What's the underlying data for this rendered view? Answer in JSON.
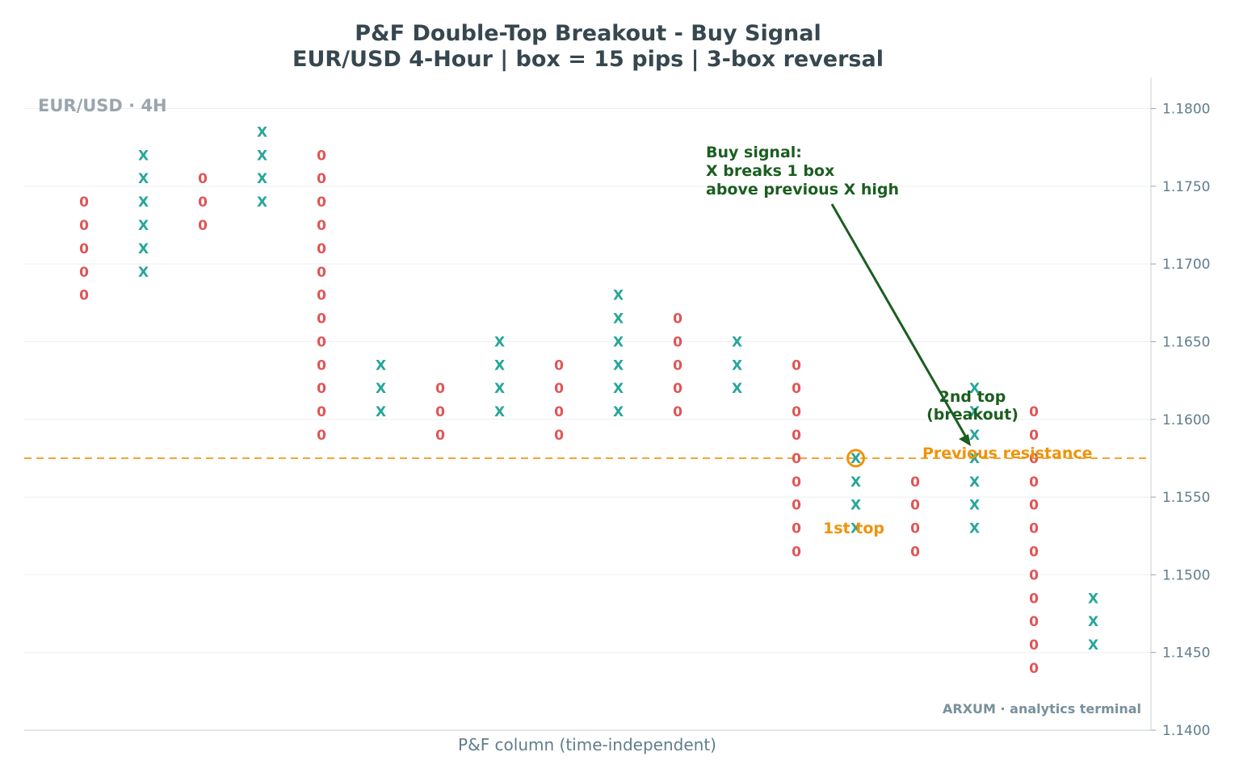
{
  "title": "P&F Double-Top Breakout - Buy Signal",
  "subtitle": "EUR/USD 4-Hour  |  box = 15 pips  |  3-box reversal",
  "corner_label": "EUR/USD · 4H",
  "watermark": "ARXUM · analytics terminal",
  "colors": {
    "x": "#26a69a",
    "o": "#e05555",
    "resistance": "#f0a030",
    "annotation": "#1b5e20",
    "first_top": "#f0930a",
    "axis_text": "#607d8b",
    "title": "#37474f"
  },
  "chart_data": {
    "type": "point-and-figure",
    "xlabel": "P&F column (time-independent)",
    "ylabel": "",
    "ylim": [
      1.14,
      1.182
    ],
    "y_ticks": [
      "1.1400",
      "1.1450",
      "1.1500",
      "1.1550",
      "1.1600",
      "1.1650",
      "1.1700",
      "1.1750",
      "1.1800"
    ],
    "grid": true,
    "columns": [
      {
        "type": "O",
        "prices": [
          1.168,
          1.1695,
          1.171,
          1.1725,
          1.174
        ]
      },
      {
        "type": "X",
        "prices": [
          1.1695,
          1.171,
          1.1725,
          1.174,
          1.1755,
          1.177
        ]
      },
      {
        "type": "O",
        "prices": [
          1.1725,
          1.174,
          1.1755
        ]
      },
      {
        "type": "X",
        "prices": [
          1.174,
          1.1755,
          1.177,
          1.1785
        ]
      },
      {
        "type": "O",
        "prices": [
          1.159,
          1.1605,
          1.162,
          1.1635,
          1.165,
          1.1665,
          1.168,
          1.1695,
          1.171,
          1.1725,
          1.174,
          1.1755,
          1.177
        ]
      },
      {
        "type": "X",
        "prices": [
          1.1605,
          1.162,
          1.1635
        ]
      },
      {
        "type": "O",
        "prices": [
          1.159,
          1.1605,
          1.162
        ]
      },
      {
        "type": "X",
        "prices": [
          1.1605,
          1.162,
          1.1635,
          1.165
        ]
      },
      {
        "type": "O",
        "prices": [
          1.159,
          1.1605,
          1.162,
          1.1635
        ]
      },
      {
        "type": "X",
        "prices": [
          1.1605,
          1.162,
          1.1635,
          1.165,
          1.1665,
          1.168
        ]
      },
      {
        "type": "O",
        "prices": [
          1.1605,
          1.162,
          1.1635,
          1.165,
          1.1665
        ]
      },
      {
        "type": "X",
        "prices": [
          1.162,
          1.1635,
          1.165
        ]
      },
      {
        "type": "O",
        "prices": [
          1.1515,
          1.153,
          1.1545,
          1.156,
          1.1575,
          1.159,
          1.1605,
          1.162,
          1.1635
        ]
      },
      {
        "type": "X",
        "prices": [
          1.153,
          1.1545,
          1.156,
          1.1575
        ]
      },
      {
        "type": "O",
        "prices": [
          1.1515,
          1.153,
          1.1545,
          1.156
        ]
      },
      {
        "type": "X",
        "prices": [
          1.153,
          1.1545,
          1.156,
          1.1575,
          1.159,
          1.1605,
          1.162
        ]
      },
      {
        "type": "O",
        "prices": [
          1.144,
          1.1455,
          1.147,
          1.1485,
          1.15,
          1.1515,
          1.153,
          1.1545,
          1.156,
          1.1575,
          1.159,
          1.1605
        ]
      },
      {
        "type": "X",
        "prices": [
          1.1455,
          1.147,
          1.1485
        ]
      }
    ],
    "resistance_level": 1.1575,
    "annotations": {
      "resistance": "Previous resistance",
      "first_top": "1st top",
      "second_top_line1": "2nd top",
      "second_top_line2": "(breakout)",
      "buy_line1": "Buy signal:",
      "buy_line2": "X breaks 1 box",
      "buy_line3": "above previous X high"
    }
  }
}
